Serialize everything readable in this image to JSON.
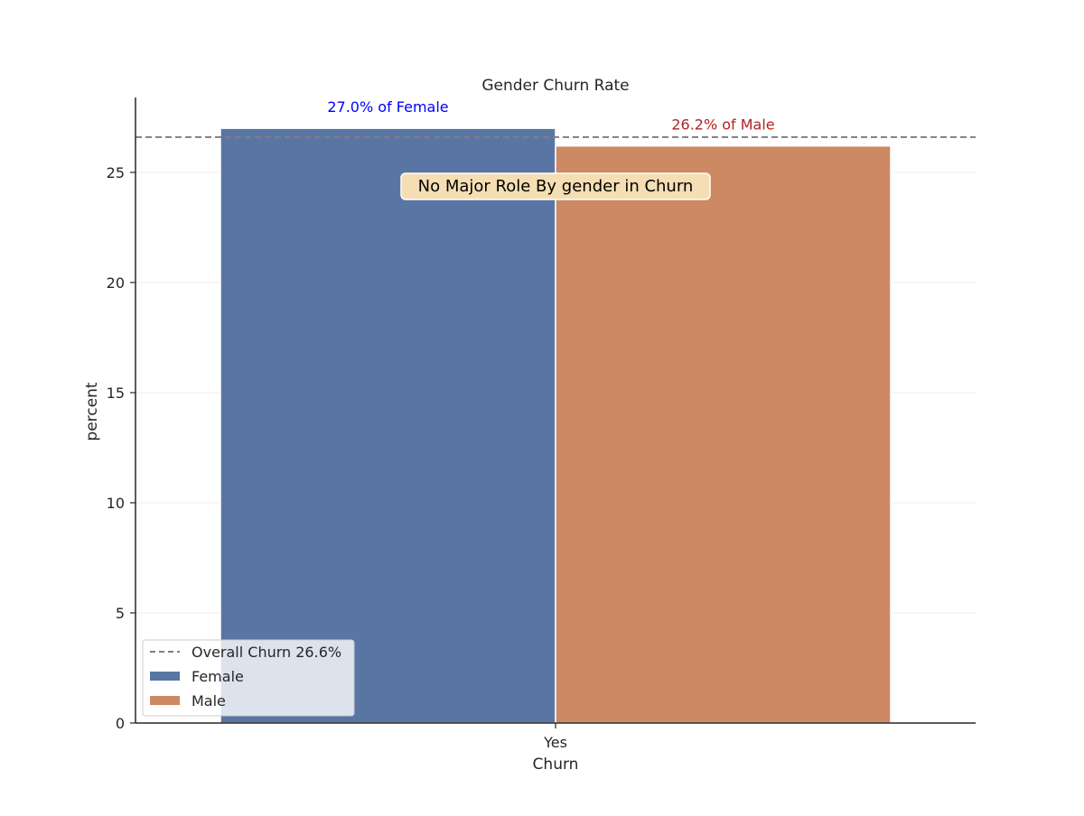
{
  "chart_data": {
    "type": "bar",
    "title": "Gender Churn Rate",
    "xlabel": "Churn",
    "ylabel": "percent",
    "categories": [
      "Yes"
    ],
    "series": [
      {
        "name": "Female",
        "values": [
          27.0
        ],
        "color": "#5875a4",
        "label": "27.0% of Female",
        "label_color": "#0000ff"
      },
      {
        "name": "Male",
        "values": [
          26.2
        ],
        "color": "#cc8963",
        "label": "26.2% of Male",
        "label_color": "#b22222"
      }
    ],
    "reference_line": {
      "value": 26.6,
      "label": "Overall Churn 26.6%",
      "style": "dashed",
      "color": "#7f7f7f"
    },
    "annotation": {
      "text": "No Major Role By gender in Churn",
      "background": "#f5deb3"
    },
    "ylim": [
      0,
      28.4
    ],
    "yticks": [
      0,
      5,
      10,
      15,
      20,
      25
    ],
    "grid": true,
    "legend_position": "lower-left"
  }
}
